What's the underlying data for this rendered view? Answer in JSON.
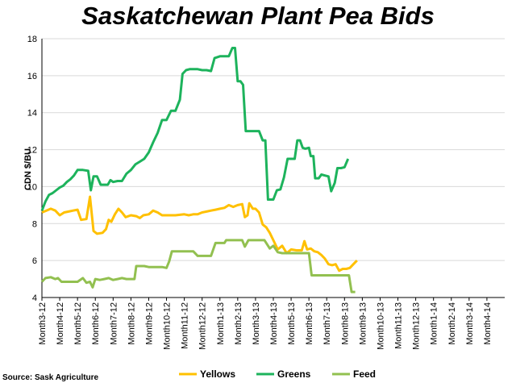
{
  "chart_data": {
    "type": "line",
    "title": "Saskatchewan Plant Pea Bids",
    "ylabel": "CDN $/BU",
    "xlabel": "",
    "ylim": [
      4,
      18
    ],
    "yticks": [
      4,
      6,
      8,
      10,
      12,
      14,
      16,
      18
    ],
    "grid": true,
    "legend": "bottom",
    "source": "Source: Sask Agriculture",
    "categories": [
      "Month3-12",
      "Month4-12",
      "Month5-12",
      "Month6-12",
      "Month7-12",
      "Month8-12",
      "Month9-12",
      "Month10-12",
      "Month11-12",
      "Month12-12",
      "Month1-13",
      "Month2-13",
      "Month3-13",
      "Month4-13",
      "Month5-13",
      "Month6-13",
      "Month7-13",
      "Month8-13",
      "Month9-13",
      "Month10-13",
      "Month11-13",
      "Month12-13",
      "Month1-14",
      "Month2-14",
      "Month3-14",
      "Month4-14"
    ],
    "series": [
      {
        "name": "Yellows",
        "color": "#FFC000",
        "points": [
          [
            0,
            8.6
          ],
          [
            0.25,
            8.7
          ],
          [
            0.5,
            8.8
          ],
          [
            0.75,
            8.7
          ],
          [
            1,
            8.45
          ],
          [
            1.25,
            8.6
          ],
          [
            1.5,
            8.65
          ],
          [
            1.75,
            8.7
          ],
          [
            2,
            8.75
          ],
          [
            2.2,
            8.2
          ],
          [
            2.5,
            8.25
          ],
          [
            2.7,
            9.45
          ],
          [
            2.9,
            7.6
          ],
          [
            3.1,
            7.45
          ],
          [
            3.4,
            7.5
          ],
          [
            3.6,
            7.7
          ],
          [
            3.75,
            8.2
          ],
          [
            3.9,
            8.1
          ],
          [
            4.1,
            8.5
          ],
          [
            4.3,
            8.8
          ],
          [
            4.5,
            8.6
          ],
          [
            4.7,
            8.35
          ],
          [
            5,
            8.45
          ],
          [
            5.3,
            8.4
          ],
          [
            5.5,
            8.3
          ],
          [
            5.7,
            8.45
          ],
          [
            6,
            8.5
          ],
          [
            6.25,
            8.7
          ],
          [
            6.5,
            8.6
          ],
          [
            6.75,
            8.45
          ],
          [
            7,
            8.45
          ],
          [
            7.5,
            8.45
          ],
          [
            8,
            8.5
          ],
          [
            8.25,
            8.45
          ],
          [
            8.5,
            8.5
          ],
          [
            8.75,
            8.5
          ],
          [
            9,
            8.6
          ],
          [
            9.25,
            8.65
          ],
          [
            9.5,
            8.7
          ],
          [
            9.75,
            8.75
          ],
          [
            10,
            8.8
          ],
          [
            10.25,
            8.85
          ],
          [
            10.5,
            9
          ],
          [
            10.75,
            8.9
          ],
          [
            11,
            9
          ],
          [
            11.25,
            9.05
          ],
          [
            11.4,
            8.35
          ],
          [
            11.55,
            8.45
          ],
          [
            11.65,
            9.1
          ],
          [
            11.85,
            8.8
          ],
          [
            12,
            8.8
          ],
          [
            12.2,
            8.6
          ],
          [
            12.4,
            7.95
          ],
          [
            12.6,
            7.8
          ],
          [
            12.8,
            7.5
          ],
          [
            13,
            7.1
          ],
          [
            13.25,
            6.6
          ],
          [
            13.5,
            6.8
          ],
          [
            13.75,
            6.4
          ],
          [
            14,
            6.6
          ],
          [
            14.3,
            6.55
          ],
          [
            14.6,
            6.55
          ],
          [
            14.75,
            7.05
          ],
          [
            14.9,
            6.6
          ],
          [
            15.1,
            6.65
          ],
          [
            15.3,
            6.5
          ],
          [
            15.5,
            6.45
          ],
          [
            15.7,
            6.3
          ],
          [
            15.9,
            6.1
          ],
          [
            16.1,
            5.8
          ],
          [
            16.3,
            5.75
          ],
          [
            16.5,
            5.8
          ],
          [
            16.7,
            5.45
          ],
          [
            16.9,
            5.55
          ],
          [
            17.1,
            5.55
          ],
          [
            17.3,
            5.6
          ],
          [
            17.5,
            5.8
          ],
          [
            17.7,
            6.0
          ]
        ]
      },
      {
        "name": "Greens",
        "color": "#1DB35C",
        "points": [
          [
            0,
            8.7
          ],
          [
            0.2,
            9.2
          ],
          [
            0.4,
            9.55
          ],
          [
            0.6,
            9.65
          ],
          [
            0.8,
            9.8
          ],
          [
            1,
            9.95
          ],
          [
            1.2,
            10.05
          ],
          [
            1.4,
            10.25
          ],
          [
            1.6,
            10.4
          ],
          [
            1.8,
            10.6
          ],
          [
            2,
            10.9
          ],
          [
            2.3,
            10.9
          ],
          [
            2.6,
            10.85
          ],
          [
            2.75,
            9.8
          ],
          [
            2.9,
            10.55
          ],
          [
            3.1,
            10.55
          ],
          [
            3.3,
            10.1
          ],
          [
            3.5,
            10.1
          ],
          [
            3.7,
            10.1
          ],
          [
            3.85,
            10.35
          ],
          [
            4,
            10.25
          ],
          [
            4.25,
            10.3
          ],
          [
            4.5,
            10.3
          ],
          [
            4.75,
            10.7
          ],
          [
            5,
            10.9
          ],
          [
            5.25,
            11.2
          ],
          [
            5.5,
            11.35
          ],
          [
            5.75,
            11.5
          ],
          [
            6,
            11.85
          ],
          [
            6.25,
            12.4
          ],
          [
            6.5,
            12.9
          ],
          [
            6.75,
            13.6
          ],
          [
            7,
            13.6
          ],
          [
            7.25,
            14.1
          ],
          [
            7.5,
            14.1
          ],
          [
            7.75,
            14.7
          ],
          [
            7.9,
            16.1
          ],
          [
            8.1,
            16.3
          ],
          [
            8.3,
            16.35
          ],
          [
            8.5,
            16.35
          ],
          [
            8.75,
            16.35
          ],
          [
            9,
            16.3
          ],
          [
            9.25,
            16.3
          ],
          [
            9.5,
            16.25
          ],
          [
            9.7,
            16.95
          ],
          [
            9.85,
            17.0
          ],
          [
            10,
            17.05
          ],
          [
            10.25,
            17.05
          ],
          [
            10.5,
            17.05
          ],
          [
            10.7,
            17.5
          ],
          [
            10.85,
            17.5
          ],
          [
            11,
            15.7
          ],
          [
            11.15,
            15.7
          ],
          [
            11.3,
            15.5
          ],
          [
            11.45,
            13.0
          ],
          [
            11.7,
            13.0
          ],
          [
            12,
            13.0
          ],
          [
            12.2,
            13.0
          ],
          [
            12.4,
            12.5
          ],
          [
            12.55,
            12.5
          ],
          [
            12.7,
            9.3
          ],
          [
            13,
            9.3
          ],
          [
            13.2,
            9.8
          ],
          [
            13.4,
            9.85
          ],
          [
            13.6,
            10.5
          ],
          [
            13.8,
            11.5
          ],
          [
            14,
            11.5
          ],
          [
            14.2,
            11.5
          ],
          [
            14.35,
            12.5
          ],
          [
            14.5,
            12.5
          ],
          [
            14.65,
            12.1
          ],
          [
            14.8,
            12.05
          ],
          [
            15,
            12.1
          ],
          [
            15.1,
            11.65
          ],
          [
            15.25,
            11.65
          ],
          [
            15.35,
            10.45
          ],
          [
            15.55,
            10.45
          ],
          [
            15.7,
            10.65
          ],
          [
            15.9,
            10.6
          ],
          [
            16.1,
            10.55
          ],
          [
            16.25,
            9.75
          ],
          [
            16.45,
            10.2
          ],
          [
            16.6,
            11.0
          ],
          [
            16.8,
            11.0
          ],
          [
            17,
            11.05
          ],
          [
            17.2,
            11.5
          ]
        ]
      },
      {
        "name": "Feed",
        "color": "#92C050",
        "points": [
          [
            0,
            4.85
          ],
          [
            0.2,
            5.05
          ],
          [
            0.5,
            5.1
          ],
          [
            0.75,
            5.0
          ],
          [
            0.9,
            5.05
          ],
          [
            1.1,
            4.85
          ],
          [
            1.5,
            4.85
          ],
          [
            2,
            4.85
          ],
          [
            2.3,
            5.05
          ],
          [
            2.5,
            4.8
          ],
          [
            2.7,
            4.85
          ],
          [
            2.85,
            4.55
          ],
          [
            3,
            5.0
          ],
          [
            3.25,
            4.95
          ],
          [
            3.5,
            5.0
          ],
          [
            3.75,
            5.05
          ],
          [
            4,
            4.95
          ],
          [
            4.25,
            5.0
          ],
          [
            4.5,
            5.05
          ],
          [
            4.75,
            5.0
          ],
          [
            5,
            5.0
          ],
          [
            5.2,
            5.0
          ],
          [
            5.3,
            5.7
          ],
          [
            5.5,
            5.7
          ],
          [
            5.75,
            5.7
          ],
          [
            6,
            5.65
          ],
          [
            6.5,
            5.65
          ],
          [
            6.75,
            5.65
          ],
          [
            7,
            5.6
          ],
          [
            7.15,
            5.95
          ],
          [
            7.3,
            6.5
          ],
          [
            7.5,
            6.5
          ],
          [
            8,
            6.5
          ],
          [
            8.5,
            6.5
          ],
          [
            8.75,
            6.25
          ],
          [
            9,
            6.25
          ],
          [
            9.5,
            6.25
          ],
          [
            9.75,
            6.95
          ],
          [
            10,
            6.95
          ],
          [
            10.25,
            6.95
          ],
          [
            10.35,
            7.1
          ],
          [
            10.75,
            7.1
          ],
          [
            11,
            7.1
          ],
          [
            11.25,
            7.1
          ],
          [
            11.4,
            6.75
          ],
          [
            11.6,
            7.1
          ],
          [
            12,
            7.1
          ],
          [
            12.5,
            7.1
          ],
          [
            12.8,
            6.65
          ],
          [
            13,
            6.8
          ],
          [
            13.25,
            6.45
          ],
          [
            13.5,
            6.4
          ],
          [
            14,
            6.4
          ],
          [
            14.5,
            6.4
          ],
          [
            14.8,
            6.4
          ],
          [
            15,
            6.4
          ],
          [
            15.15,
            5.2
          ],
          [
            15.5,
            5.2
          ],
          [
            16,
            5.2
          ],
          [
            16.5,
            5.2
          ],
          [
            17,
            5.2
          ],
          [
            17.25,
            5.2
          ],
          [
            17.4,
            4.3
          ],
          [
            17.6,
            4.3
          ]
        ]
      }
    ]
  }
}
